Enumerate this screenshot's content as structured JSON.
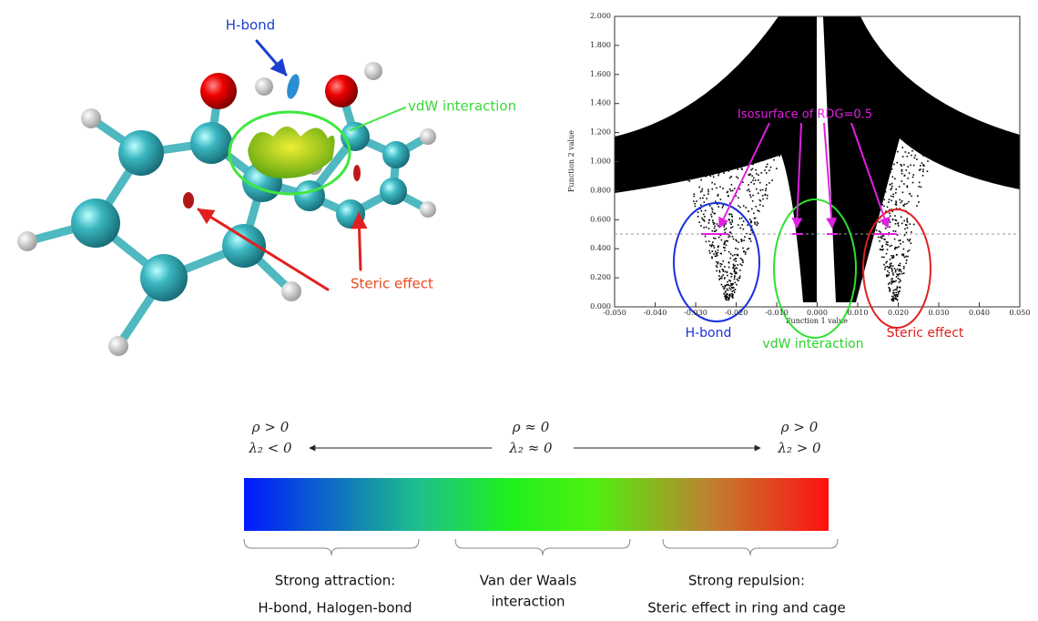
{
  "molecule": {
    "labels": {
      "hbond": "H-bond",
      "vdw": "vdW interaction",
      "steric": "Steric effect"
    }
  },
  "plot": {
    "y_axis_title": "Function 2 value",
    "x_axis_title": "Function 1 value",
    "yticks": [
      "0.000",
      "0.200",
      "0.400",
      "0.600",
      "0.800",
      "1.000",
      "1.200",
      "1.400",
      "1.600",
      "1.800",
      "2.000"
    ],
    "xticks": [
      "-0.050",
      "-0.040",
      "-0.030",
      "-0.020",
      "-0.010",
      "0.000",
      "0.010",
      "0.020",
      "0.030",
      "0.040",
      "0.050"
    ],
    "annotation": "Isosurface of RDG=0.5",
    "regions": {
      "hbond": "H-bond",
      "vdw": "vdW interaction",
      "steric": "Steric effect"
    }
  },
  "colorbar": {
    "left": {
      "line1": "ρ > 0",
      "line2": "λ₂ < 0"
    },
    "middle": {
      "line1": "ρ ≈ 0",
      "line2": "λ₂ ≈ 0"
    },
    "right": {
      "line1": "ρ > 0",
      "line2": "λ₂ > 0"
    },
    "captions": [
      [
        "Strong attraction:",
        "H-bond, Halogen-bond"
      ],
      [
        "Van der Waals",
        "interaction"
      ],
      [
        "Strong repulsion:",
        "Steric effect in ring and cage"
      ]
    ]
  }
}
